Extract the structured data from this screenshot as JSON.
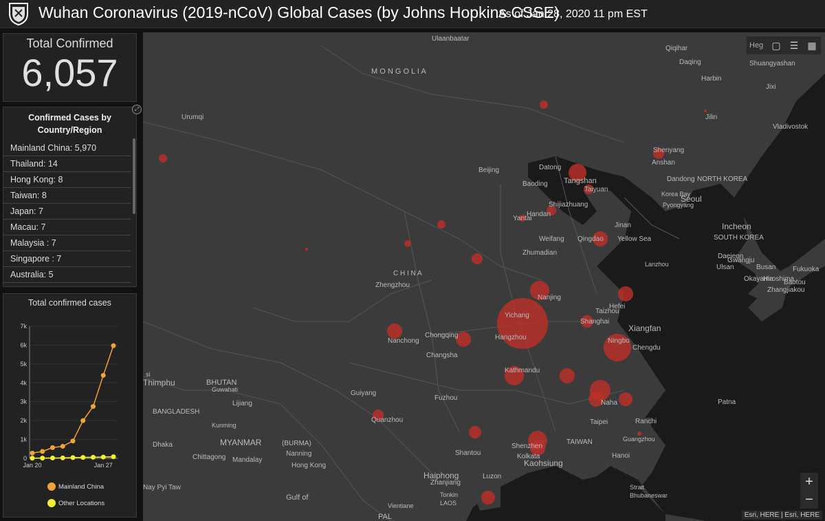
{
  "header": {
    "title": "Wuhan Coronavirus (2019-nCoV) Global Cases (by Johns Hopkins CSSE)",
    "subtitle": "As of Jan 28, 2020 11 pm EST",
    "logo_icon": "university-shield-icon"
  },
  "total": {
    "label": "Total Confirmed",
    "value": "6,057"
  },
  "country_list": {
    "heading_line1": "Confirmed Cases by",
    "heading_line2": "Country/Region",
    "items": [
      {
        "label": "Mainland China:  5,970"
      },
      {
        "label": "Thailand:  14"
      },
      {
        "label": "Hong Kong:  8"
      },
      {
        "label": "Taiwan:  8"
      },
      {
        "label": "Japan:  7"
      },
      {
        "label": "Macau:  7"
      },
      {
        "label": "Malaysia :  7"
      },
      {
        "label": "Singapore :  7"
      },
      {
        "label": "Australia:  5"
      }
    ]
  },
  "chart_data": {
    "type": "line",
    "title": "Total confirmed cases",
    "x": [
      "Jan 20",
      "Jan 21",
      "Jan 22",
      "Jan 23",
      "Jan 24",
      "Jan 25",
      "Jan 26",
      "Jan 27",
      "Jan 28"
    ],
    "xticks": [
      "Jan 20",
      "Jan 27"
    ],
    "yticks": [
      "0",
      "1k",
      "2k",
      "3k",
      "4k",
      "5k",
      "6k",
      "7k"
    ],
    "ylim": [
      0,
      7000
    ],
    "series": [
      {
        "name": "Mainland China",
        "color": "#f0a33a",
        "values": [
          280,
          370,
          570,
          640,
          920,
          2000,
          2750,
          4400,
          5970
        ]
      },
      {
        "name": "Other Locations",
        "color": "#f0f030",
        "values": [
          10,
          15,
          20,
          25,
          40,
          50,
          60,
          70,
          87
        ]
      }
    ],
    "legend": "bottom"
  },
  "map": {
    "search_placeholder": "Heg",
    "tools": [
      "bookmark-icon",
      "list-icon",
      "qr-icon"
    ],
    "zoom_in": "+",
    "zoom_out": "−",
    "attribution": "Esri, HERE | Esri, HERE",
    "bubble_color": "#c0302a",
    "labels": [
      {
        "text": "Ulaanbaatar"
      },
      {
        "text": "M O N G O L I A"
      },
      {
        "text": "Urumqi"
      },
      {
        "text": "Qiqihar"
      },
      {
        "text": "Daqing"
      },
      {
        "text": "Harbin"
      },
      {
        "text": "Shuangyashan"
      },
      {
        "text": "Jixi"
      },
      {
        "text": "Jilin"
      },
      {
        "text": "Vladivostok"
      },
      {
        "text": "Shenyang"
      },
      {
        "text": "Anshan"
      },
      {
        "text": "Dandong"
      },
      {
        "text": "NORTH KOREA"
      },
      {
        "text": "Korea Bay"
      },
      {
        "text": "Pyongyang"
      },
      {
        "text": "Seoul"
      },
      {
        "text": "Incheon"
      },
      {
        "text": "SOUTH KOREA"
      },
      {
        "text": "Daejeon"
      },
      {
        "text": "Gwangju"
      },
      {
        "text": "Ulsan"
      },
      {
        "text": "Busan"
      },
      {
        "text": "Okayama"
      },
      {
        "text": "Hiroshima"
      },
      {
        "text": "Fukuoka"
      },
      {
        "text": "Baotou"
      },
      {
        "text": "Zhangjiakou"
      },
      {
        "text": "Beijing"
      },
      {
        "text": "Datong"
      },
      {
        "text": "Tangshan"
      },
      {
        "text": "Baoding"
      },
      {
        "text": "Taiyuan"
      },
      {
        "text": "Shijiazhuang"
      },
      {
        "text": "Yantai"
      },
      {
        "text": "Handan"
      },
      {
        "text": "Jinan"
      },
      {
        "text": "Weifang"
      },
      {
        "text": "Qingdao"
      },
      {
        "text": "Yellow Sea"
      },
      {
        "text": "Lanzhou"
      },
      {
        "text": "C H I N A"
      },
      {
        "text": "Zhengzhou"
      },
      {
        "text": "Zhumadian"
      },
      {
        "text": "Nanjing"
      },
      {
        "text": "Taizhou"
      },
      {
        "text": "Hefei"
      },
      {
        "text": "Shanghai"
      },
      {
        "text": "Xiangfan"
      },
      {
        "text": "Yichang"
      },
      {
        "text": "Hangzhou"
      },
      {
        "text": "Ningbo"
      },
      {
        "text": "Chengdu"
      },
      {
        "text": "Nanchong"
      },
      {
        "text": "Chongqing"
      },
      {
        "text": "Changsha"
      },
      {
        "text": "Kathmandu"
      },
      {
        "text": "Thimphu"
      },
      {
        "text": "BHUTAN"
      },
      {
        "text": "Guwahati"
      },
      {
        "text": "Lijiang"
      },
      {
        "text": "Guiyang"
      },
      {
        "text": "Fuzhou"
      },
      {
        "text": "Naha"
      },
      {
        "text": "Patna"
      },
      {
        "text": "BANGLADESH"
      },
      {
        "text": "Kunming"
      },
      {
        "text": "Quanzhou"
      },
      {
        "text": "Taipei"
      },
      {
        "text": "Ranchi"
      },
      {
        "text": "Dhaka"
      },
      {
        "text": "MYANMAR"
      },
      {
        "text": "(BURMA)"
      },
      {
        "text": "Nanning"
      },
      {
        "text": "Shantou"
      },
      {
        "text": "TAIWAN"
      },
      {
        "text": "Guangzhou"
      },
      {
        "text": "Shenzhen"
      },
      {
        "text": "Kolkata"
      },
      {
        "text": "Chittagong"
      },
      {
        "text": "Mandalay"
      },
      {
        "text": "Hong Kong"
      },
      {
        "text": "Kaohsiung"
      },
      {
        "text": "Hanoi"
      },
      {
        "text": "Haiphong"
      },
      {
        "text": "Zhanjiang"
      },
      {
        "text": "Luzon"
      },
      {
        "text": "Strait"
      },
      {
        "text": "Bhubaneswar"
      },
      {
        "text": "Nay Pyi Taw"
      },
      {
        "text": "Gulf of"
      },
      {
        "text": "Tonkin"
      },
      {
        "text": "LAOS"
      },
      {
        "text": "Vientiane"
      },
      {
        "text": "PAL"
      },
      {
        "text": "si"
      }
    ]
  }
}
